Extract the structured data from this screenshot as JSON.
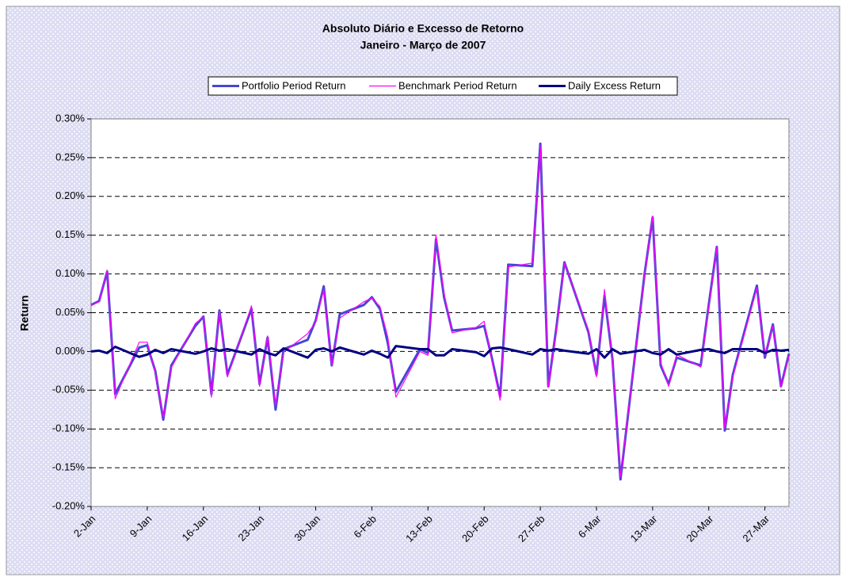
{
  "chart_data": {
    "type": "line",
    "title": "Absoluto Diário e Excesso de Retorno",
    "subtitle": "Janeiro - Março de 2007",
    "y_label": "Return",
    "x": [
      "2-Jan",
      "3-Jan",
      "4-Jan",
      "5-Jan",
      "8-Jan",
      "9-Jan",
      "10-Jan",
      "11-Jan",
      "12-Jan",
      "15-Jan",
      "16-Jan",
      "17-Jan",
      "18-Jan",
      "19-Jan",
      "22-Jan",
      "23-Jan",
      "24-Jan",
      "25-Jan",
      "26-Jan",
      "29-Jan",
      "30-Jan",
      "31-Jan",
      "1-Feb",
      "2-Feb",
      "5-Feb",
      "6-Feb",
      "7-Feb",
      "8-Feb",
      "9-Feb",
      "12-Feb",
      "13-Feb",
      "14-Feb",
      "15-Feb",
      "16-Feb",
      "19-Feb",
      "20-Feb",
      "21-Feb",
      "22-Feb",
      "23-Feb",
      "26-Feb",
      "27-Feb",
      "28-Feb",
      "1-Mar",
      "2-Mar",
      "5-Mar",
      "6-Mar",
      "7-Mar",
      "8-Mar",
      "9-Mar",
      "12-Mar",
      "13-Mar",
      "14-Mar",
      "15-Mar",
      "16-Mar",
      "19-Mar",
      "20-Mar",
      "21-Mar",
      "22-Mar",
      "23-Mar",
      "26-Mar",
      "27-Mar",
      "28-Mar",
      "29-Mar",
      "30-Mar"
    ],
    "xlim": [
      "2-Jan",
      "30-Mar"
    ],
    "xticks": [
      "2-Jan",
      "9-Jan",
      "16-Jan",
      "23-Jan",
      "30-Jan",
      "6-Feb",
      "13-Feb",
      "20-Feb",
      "27-Feb",
      "6-Mar",
      "13-Mar",
      "20-Mar",
      "27-Mar"
    ],
    "ylim": [
      -0.2,
      0.3
    ],
    "yticks": [
      {
        "value": -0.2,
        "label": "-0.20%"
      },
      {
        "value": -0.15,
        "label": "-0.15%"
      },
      {
        "value": -0.1,
        "label": "-0.10%"
      },
      {
        "value": -0.05,
        "label": "-0.05%"
      },
      {
        "value": 0,
        "label": "0.00%"
      },
      {
        "value": 0.05,
        "label": "0.05%"
      },
      {
        "value": 0.1,
        "label": "0.10%"
      },
      {
        "value": 0.15,
        "label": "0.15%"
      },
      {
        "value": 0.2,
        "label": "0.20%"
      },
      {
        "value": 0.25,
        "label": "0.25%"
      },
      {
        "value": 0.3,
        "label": "0.30%"
      }
    ],
    "grid": true,
    "legend": "top",
    "series": [
      {
        "name": "Portfolio Period Return",
        "color": "#4646d2",
        "values": [
          0.06,
          0.065,
          0.103,
          -0.055,
          0.005,
          0.008,
          -0.025,
          -0.088,
          -0.018,
          0.033,
          0.045,
          -0.055,
          0.053,
          -0.03,
          0.055,
          -0.042,
          0.018,
          -0.075,
          0.003,
          0.015,
          0.04,
          0.084,
          -0.018,
          0.048,
          0.06,
          0.07,
          0.055,
          0.01,
          -0.052,
          0.003,
          -0.002,
          0.145,
          0.07,
          0.027,
          0.03,
          0.033,
          -0.01,
          -0.058,
          0.112,
          0.11,
          0.268,
          -0.045,
          0.03,
          0.115,
          0.025,
          -0.03,
          0.072,
          -0.01,
          -0.165,
          0.1,
          0.173,
          -0.018,
          -0.042,
          -0.008,
          -0.018,
          0.06,
          0.135,
          -0.102,
          -0.03,
          0.085,
          -0.008,
          0.035,
          -0.045,
          -0.003
        ]
      },
      {
        "name": "Benchmark Period Return",
        "color": "#ff00ff",
        "values": [
          0.06,
          0.064,
          0.105,
          -0.061,
          0.012,
          0.012,
          -0.027,
          -0.086,
          -0.021,
          0.036,
          0.045,
          -0.059,
          0.052,
          -0.033,
          0.059,
          -0.045,
          0.02,
          -0.07,
          -0.001,
          0.023,
          0.038,
          0.08,
          -0.018,
          0.043,
          0.064,
          0.069,
          0.058,
          0.018,
          -0.059,
          0,
          -0.005,
          0.15,
          0.075,
          0.024,
          0.031,
          0.039,
          -0.014,
          -0.063,
          0.109,
          0.114,
          0.265,
          -0.046,
          0.027,
          0.114,
          0.028,
          -0.033,
          0.08,
          -0.013,
          -0.162,
          0.098,
          0.175,
          -0.014,
          -0.045,
          -0.004,
          -0.02,
          0.057,
          0.135,
          -0.1,
          -0.033,
          0.082,
          -0.006,
          0.033,
          -0.046,
          -0.005
        ]
      },
      {
        "name": "Daily Excess Return",
        "color": "#000080",
        "values": [
          0,
          0.001,
          -0.002,
          0.006,
          -0.007,
          -0.004,
          0.002,
          -0.002,
          0.003,
          -0.003,
          0,
          0.004,
          0.001,
          0.003,
          -0.004,
          0.003,
          -0.002,
          -0.005,
          0.004,
          -0.008,
          0.002,
          0.004,
          0,
          0.005,
          -0.004,
          0.001,
          -0.003,
          -0.008,
          0.007,
          0.003,
          0.003,
          -0.005,
          -0.005,
          0.003,
          -0.001,
          -0.006,
          0.004,
          0.005,
          0.003,
          -0.004,
          0.003,
          0.001,
          0.003,
          0.001,
          -0.003,
          0.003,
          -0.008,
          0.003,
          -0.003,
          0.002,
          -0.002,
          -0.004,
          0.003,
          -0.004,
          0.002,
          0.003,
          0,
          -0.002,
          0.003,
          0.003,
          -0.002,
          0.002,
          0.001,
          0.002
        ]
      }
    ]
  }
}
